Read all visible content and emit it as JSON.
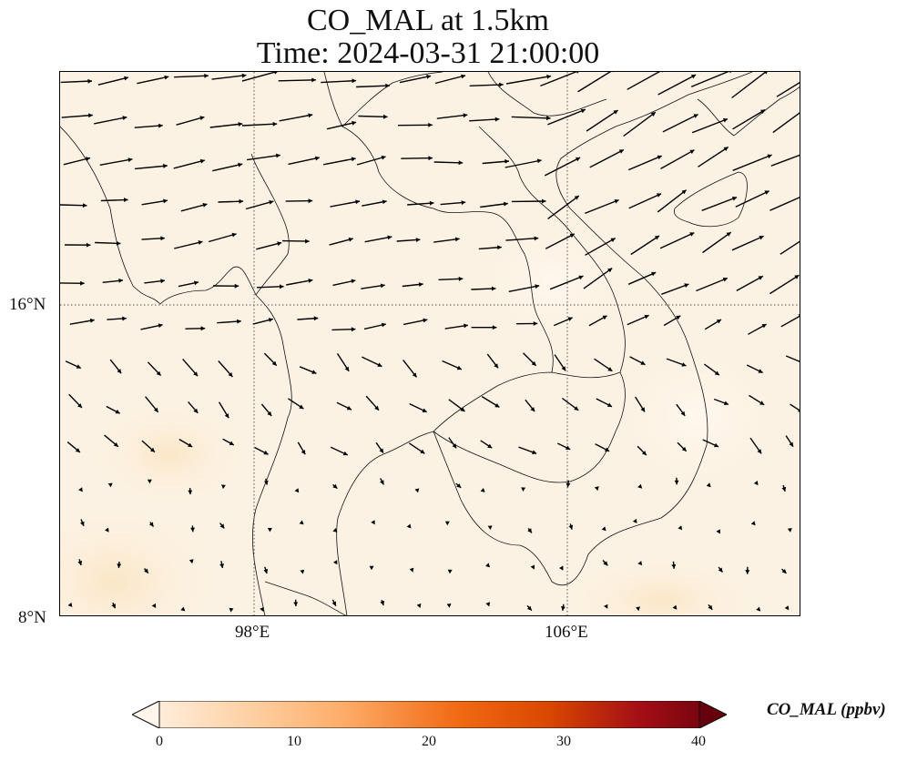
{
  "title": {
    "line1": "CO_MAL at 1.5km",
    "line2": "Time: 2024-03-31 21:00:00"
  },
  "map": {
    "lon_range": [
      93,
      112
    ],
    "lat_range": [
      8,
      22
    ],
    "lon_ticks": [
      {
        "label": "98°E"
      },
      {
        "label": "106°E"
      }
    ],
    "lat_ticks": [
      {
        "label": "16°N"
      },
      {
        "label": "8°N"
      }
    ],
    "gridline_style": "dotted",
    "field_color": "#fcf2e3",
    "arrow_color": "#000000",
    "land_outline_color": "#000000"
  },
  "colorbar": {
    "label": "CO_MAL (ppbv)",
    "min": 0,
    "max": 40,
    "ticks": [
      "0",
      "10",
      "20",
      "30",
      "40"
    ],
    "colormap": [
      "#fff5eb",
      "#fdd0a2",
      "#fdae6b",
      "#f16913",
      "#d94801",
      "#a50f15",
      "#67000d"
    ],
    "extend": "both"
  }
}
